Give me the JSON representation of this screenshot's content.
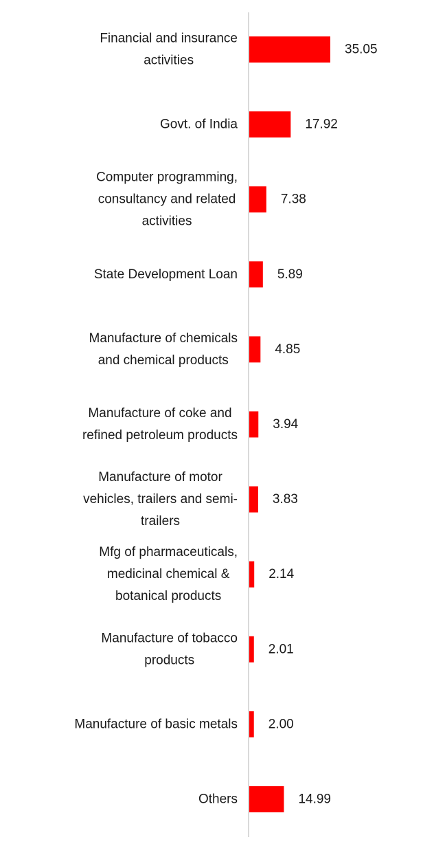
{
  "chart_data": {
    "type": "bar",
    "orientation": "horizontal",
    "categories": [
      [
        "Financial and insurance",
        "activities"
      ],
      [
        "Govt. of India"
      ],
      [
        "Computer programming,",
        "consultancy and related",
        "activities"
      ],
      [
        "State Development Loan"
      ],
      [
        "Manufacture of chemicals",
        "and chemical products"
      ],
      [
        "Manufacture of coke and",
        "refined petroleum products"
      ],
      [
        "Manufacture of motor",
        "vehicles, trailers and semi-",
        "trailers"
      ],
      [
        "Mfg of pharmaceuticals,",
        "medicinal chemical &",
        "botanical products"
      ],
      [
        "Manufacture of tobacco",
        "products"
      ],
      [
        "Manufacture of basic metals"
      ],
      [
        "Others"
      ]
    ],
    "values": [
      35.05,
      17.92,
      7.38,
      5.89,
      4.85,
      3.94,
      3.83,
      2.14,
      2.01,
      2.0,
      14.99
    ],
    "value_labels": [
      "35.05",
      "17.92",
      "7.38",
      "5.89",
      "4.85",
      "3.94",
      "3.83",
      "2.14",
      "2.01",
      "2.00",
      "14.99"
    ],
    "bar_color": "#ff0000",
    "axis_color": "#d9d9d9",
    "text_color": "#1a1a1a",
    "grid": false,
    "legend": "none",
    "xlim": [
      0,
      35.05
    ]
  }
}
